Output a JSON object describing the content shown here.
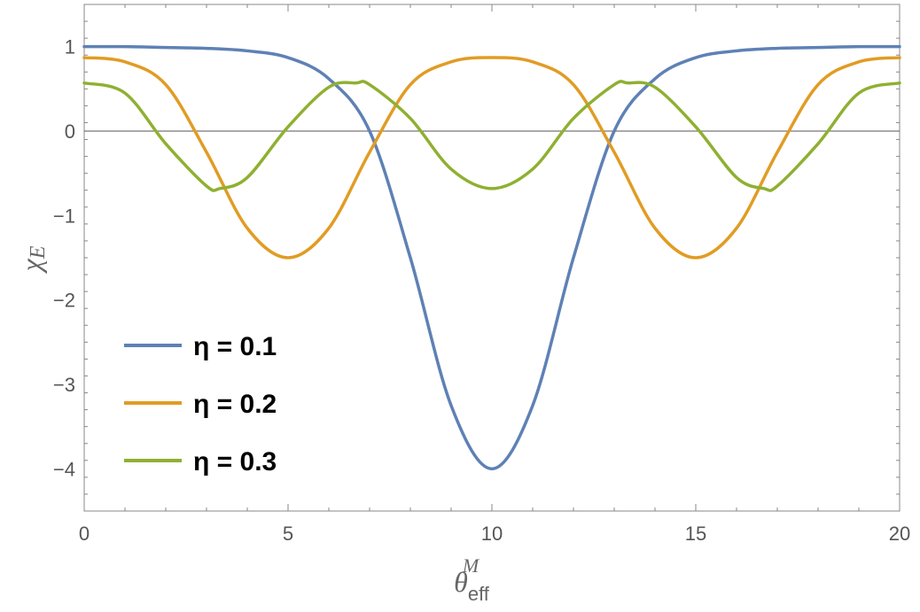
{
  "chart_data": {
    "type": "line",
    "title": "",
    "xlabel_main": "θ",
    "xlabel_sub": "eff",
    "xlabel_sup": "M",
    "ylabel_main": "χ",
    "ylabel_sub": "E",
    "xlim": [
      0,
      20
    ],
    "ylim": [
      -4.5,
      1.5
    ],
    "xticks": [
      0,
      5,
      10,
      15,
      20
    ],
    "xtick_labels": [
      "0",
      "5",
      "10",
      "15",
      "20"
    ],
    "yticks": [
      1,
      0,
      -1,
      -2,
      -3,
      -4
    ],
    "ytick_labels": [
      "1",
      "0",
      "−1",
      "−2",
      "−3",
      "−4"
    ],
    "grid": false,
    "legend_position": "bottom-left",
    "series": [
      {
        "name": "η = 0.1",
        "color": "#5E81B5",
        "x": [
          0,
          1,
          2,
          3,
          4,
          5,
          6,
          7,
          8,
          9,
          10,
          11,
          12,
          13,
          14,
          15,
          16,
          17,
          18,
          19,
          20
        ],
        "y": [
          1.0,
          1.0,
          0.99,
          0.98,
          0.95,
          0.87,
          0.62,
          0.0,
          -1.5,
          -3.25,
          -4.0,
          -3.25,
          -1.5,
          0.0,
          0.62,
          0.87,
          0.95,
          0.98,
          0.99,
          1.0,
          1.0
        ]
      },
      {
        "name": "η = 0.2",
        "color": "#E19C24",
        "x": [
          0,
          1,
          2,
          3,
          4,
          5,
          6,
          7,
          8,
          9,
          10,
          11,
          12,
          13,
          14,
          15,
          16,
          17,
          18,
          19,
          20
        ],
        "y": [
          0.87,
          0.82,
          0.55,
          -0.25,
          -1.15,
          -1.5,
          -1.15,
          -0.25,
          0.55,
          0.82,
          0.87,
          0.82,
          0.55,
          -0.25,
          -1.15,
          -1.5,
          -1.15,
          -0.25,
          0.55,
          0.82,
          0.87
        ]
      },
      {
        "name": "η = 0.3",
        "color": "#8FB032",
        "x": [
          0,
          1,
          2,
          3,
          3.33,
          4,
          5,
          6,
          6.67,
          7,
          8,
          9,
          10,
          11,
          12,
          13,
          13.33,
          14,
          15,
          16,
          16.67,
          17,
          18,
          19,
          20
        ],
        "y": [
          0.57,
          0.45,
          -0.15,
          -0.65,
          -0.68,
          -0.55,
          0.05,
          0.52,
          0.57,
          0.55,
          0.15,
          -0.45,
          -0.68,
          -0.45,
          0.15,
          0.55,
          0.57,
          0.52,
          0.05,
          -0.55,
          -0.68,
          -0.65,
          -0.15,
          0.45,
          0.57
        ]
      }
    ]
  }
}
